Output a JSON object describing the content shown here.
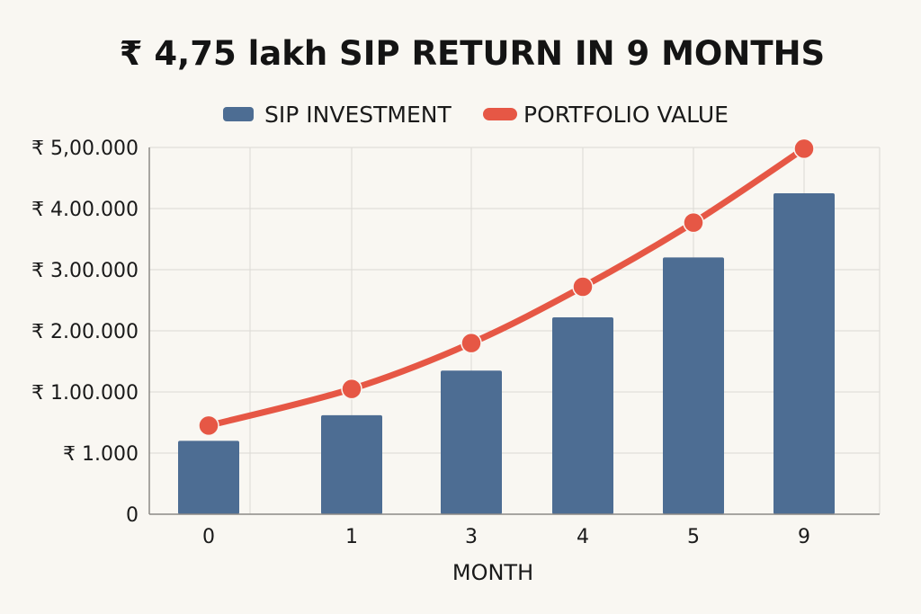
{
  "chart_data": {
    "type": "bar",
    "title": "₹ 4,75 lakh SIP RETURN IN 9 MONTHS",
    "xlabel": "MONTH",
    "ylabel": "",
    "categories": [
      "0",
      "1",
      "3",
      "4",
      "5",
      "9"
    ],
    "y_tick_labels": [
      "0",
      "₹ 1.000",
      "₹ 1.00.000",
      "₹ 2.00.000",
      "₹ 3.00.000",
      "₹ 4.00.000",
      "₹ 5,00.000"
    ],
    "ylim": [
      0,
      6
    ],
    "grid": true,
    "legend_position": "top-center",
    "series": [
      {
        "name": "SIP INVESTMENT",
        "type": "bar",
        "color": "#4d6d93",
        "values": [
          1.2,
          1.62,
          2.35,
          3.22,
          4.2,
          5.25
        ]
      },
      {
        "name": "PORTFOLIO VALUE",
        "type": "line",
        "color": "#e65745",
        "values": [
          1.45,
          2.05,
          2.8,
          3.72,
          4.77,
          5.98
        ]
      }
    ]
  }
}
